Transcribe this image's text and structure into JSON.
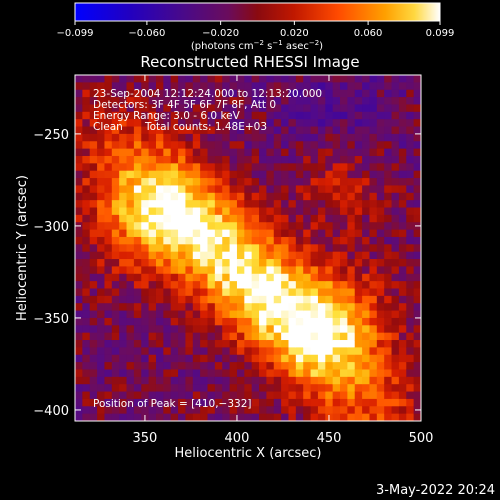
{
  "chart_data": {
    "type": "heatmap",
    "title": "Reconstructed RHESSI Image",
    "xlabel": "Heliocentric X (arcsec)",
    "ylabel": "Heliocentric Y (arcsec)",
    "xlim": [
      312,
      500
    ],
    "ylim": [
      -406,
      -218
    ],
    "x_ticks": [
      350,
      400,
      450,
      500
    ],
    "y_ticks": [
      -250,
      -300,
      -350,
      -400
    ],
    "x_tick_labels": [
      "350",
      "400",
      "450",
      "500"
    ],
    "y_tick_labels": [
      "−250",
      "−300",
      "−350",
      "−400"
    ],
    "colorbar": {
      "min": -0.099,
      "max": 0.099,
      "ticks": [
        -0.099,
        -0.06,
        -0.02,
        0.02,
        0.06,
        0.099
      ],
      "tick_labels": [
        "−0.099",
        "−0.060",
        "−0.020",
        "0.020",
        "0.060",
        "0.099"
      ],
      "unit_prefix": "(photons cm",
      "unit_exp1": "−2",
      "unit_mid": " s",
      "unit_exp2": "−1",
      "unit_mid2": " asec",
      "unit_exp3": "−2",
      "unit_suffix": ")",
      "colormap": [
        "#0000ff",
        "#2a00b0",
        "#4b0a8c",
        "#7a1270",
        "#a01010",
        "#d02000",
        "#ff5a00",
        "#ffa800",
        "#ffe040",
        "#ffffff"
      ]
    },
    "annotations": {
      "time_range": "23-Sep-2004 12:12:24.000 to 12:13:20.000",
      "detectors": "Detectors: 3F 4F 5F 6F 7F 8F, Att 0",
      "energy_range": "Energy Range: 3.0 - 6.0 keV",
      "method": "Clean",
      "total_counts": "Total counts: 1.48E+03",
      "peak": "Position of Peak = [410,−332]"
    },
    "peak": {
      "x": 410,
      "y": -332,
      "value": 0.099
    },
    "grid": false
  },
  "footer": {
    "date": "3-May-2022 20:24"
  }
}
